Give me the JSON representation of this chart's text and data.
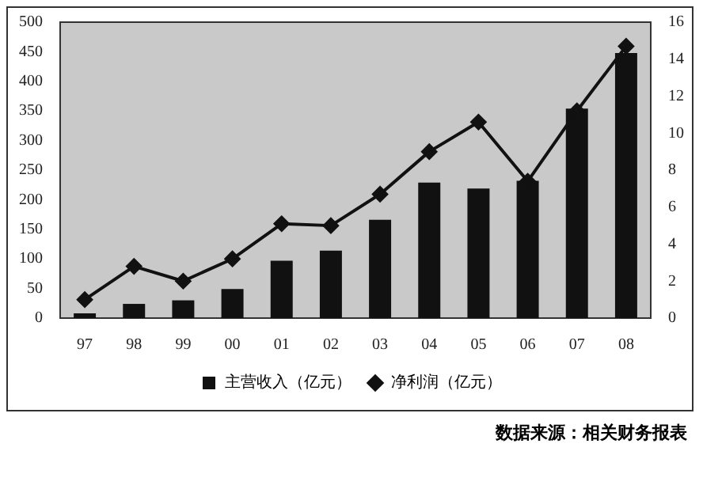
{
  "chart_data": {
    "type": "bar",
    "categories": [
      "97",
      "98",
      "99",
      "00",
      "01",
      "02",
      "03",
      "04",
      "05",
      "06",
      "07",
      "08"
    ],
    "series": [
      {
        "name": "主营收入（亿元）",
        "type": "bar",
        "color": "#111111",
        "values": [
          8,
          24,
          30,
          49,
          97,
          114,
          166,
          229,
          219,
          232,
          354,
          448
        ]
      },
      {
        "name": "净利润（亿元）",
        "type": "line",
        "axis": "y2",
        "color": "#111111",
        "marker": "diamond",
        "values": [
          1.0,
          2.8,
          2.0,
          3.2,
          5.1,
          5.0,
          6.7,
          9.0,
          10.6,
          7.4,
          11.2,
          14.7
        ]
      }
    ],
    "ylim": [
      0,
      500
    ],
    "yticks": [
      0,
      50,
      100,
      150,
      200,
      250,
      300,
      350,
      400,
      450,
      500
    ],
    "y2lim": [
      0,
      16
    ],
    "y2ticks": [
      0,
      2,
      4,
      6,
      8,
      10,
      12,
      14,
      16
    ],
    "grid": false,
    "legend": "bottom",
    "annotations": [
      "数据来源：相关财务报表"
    ]
  }
}
